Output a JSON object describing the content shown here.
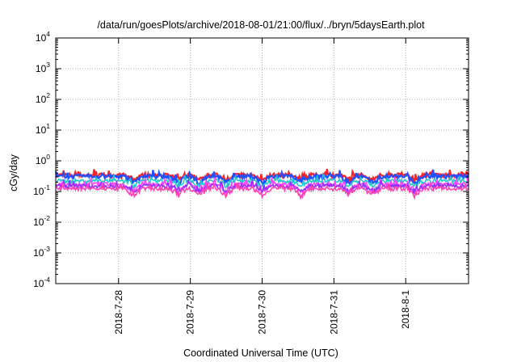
{
  "chart_data": {
    "type": "line",
    "title": "/data/run/goesPlots/archive/2018-08-01/21:00/flux/../bryn/5daysEarth.plot",
    "xlabel": "Coordinated Universal Time (UTC)",
    "ylabel": "cGy/day",
    "yscale": "log",
    "ylim": [
      0.0001,
      10000
    ],
    "xlim": [
      "2018-07-27 03:00",
      "2018-08-01 21:00"
    ],
    "y_ticks": [
      {
        "base": "10",
        "exp": "-4"
      },
      {
        "base": "10",
        "exp": "-3"
      },
      {
        "base": "10",
        "exp": "-2"
      },
      {
        "base": "10",
        "exp": "-1"
      },
      {
        "base": "10",
        "exp": "0"
      },
      {
        "base": "10",
        "exp": "1"
      },
      {
        "base": "10",
        "exp": "2"
      },
      {
        "base": "10",
        "exp": "3"
      },
      {
        "base": "10",
        "exp": "4"
      }
    ],
    "x_ticks": [
      {
        "label": "2018-7-28",
        "date": "2018-07-28 00:00"
      },
      {
        "label": "2018-7-29",
        "date": "2018-07-29 00:00"
      },
      {
        "label": "2018-7-30",
        "date": "2018-07-30 00:00"
      },
      {
        "label": "2018-7-31",
        "date": "2018-07-31 00:00"
      },
      {
        "label": "2018-8-1",
        "date": "2018-08-01 00:00"
      }
    ],
    "grid": true,
    "series": [
      {
        "color": "#ff2020",
        "level": 0.34,
        "dip_depth": 0.35
      },
      {
        "color": "#2050ff",
        "level": 0.31,
        "dip_depth": 0.5
      },
      {
        "color": "#20c8c8",
        "level": 0.22,
        "dip_depth": 0.4
      },
      {
        "color": "#ff40ff",
        "level": 0.17,
        "dip_depth": 0.55
      },
      {
        "color": "#9030ff",
        "level": 0.15,
        "dip_depth": 0.45
      },
      {
        "color": "#ff40b0",
        "level": 0.125,
        "dip_depth": 0.5
      }
    ],
    "dips": [
      "2018-07-28 05:00",
      "2018-07-28 20:00",
      "2018-07-29 03:00",
      "2018-07-29 12:00",
      "2018-07-30 00:00",
      "2018-07-30 13:00",
      "2018-07-31 05:00",
      "2018-07-31 13:00",
      "2018-08-01 03:00"
    ]
  }
}
